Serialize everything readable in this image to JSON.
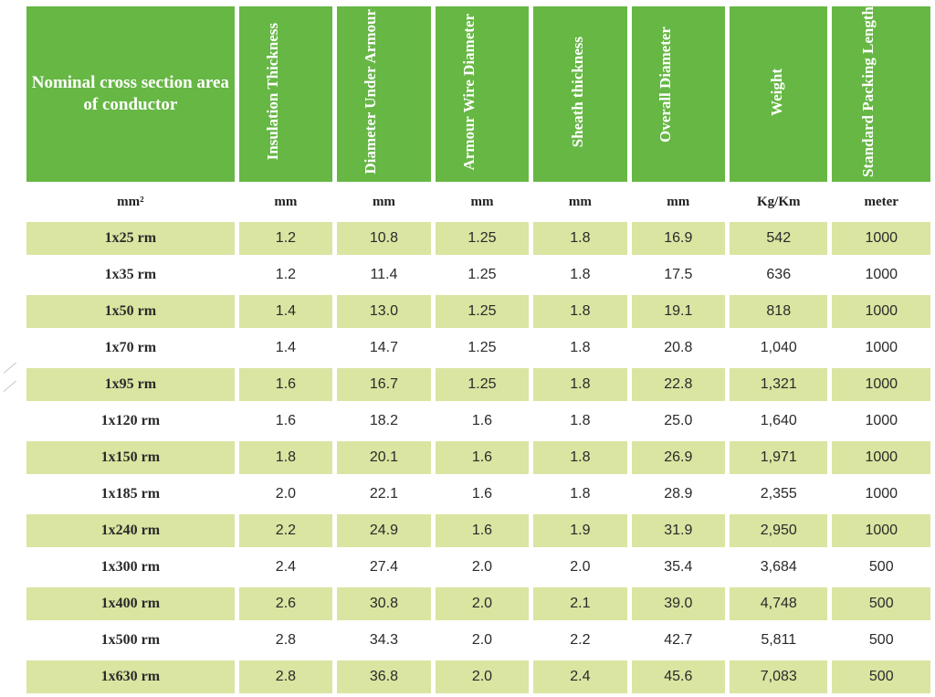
{
  "colors": {
    "header_bg": "#66b744",
    "shaded_row_bg": "#d9e5a1"
  },
  "headers": [
    "Nominal cross section area of conductor",
    "Insulation Thickness",
    "Diameter Under Armour",
    "Armour Wire Diameter",
    "Sheath thickness",
    "Overall Diameter",
    "Weight",
    "Standard Packing Length"
  ],
  "units": [
    "mm²",
    "mm",
    "mm",
    "mm",
    "mm",
    "mm",
    "Kg/Km",
    "meter"
  ],
  "rows": [
    [
      "1x25  rm",
      "1.2",
      "10.8",
      "1.25",
      "1.8",
      "16.9",
      "542",
      "1000"
    ],
    [
      "1x35  rm",
      "1.2",
      "11.4",
      "1.25",
      "1.8",
      "17.5",
      "636",
      "1000"
    ],
    [
      "1x50  rm",
      "1.4",
      "13.0",
      "1.25",
      "1.8",
      "19.1",
      "818",
      "1000"
    ],
    [
      "1x70  rm",
      "1.4",
      "14.7",
      "1.25",
      "1.8",
      "20.8",
      "1,040",
      "1000"
    ],
    [
      "1x95  rm",
      "1.6",
      "16.7",
      "1.25",
      "1.8",
      "22.8",
      "1,321",
      "1000"
    ],
    [
      "1x120  rm",
      "1.6",
      "18.2",
      "1.6",
      "1.8",
      "25.0",
      "1,640",
      "1000"
    ],
    [
      "1x150  rm",
      "1.8",
      "20.1",
      "1.6",
      "1.8",
      "26.9",
      "1,971",
      "1000"
    ],
    [
      "1x185  rm",
      "2.0",
      "22.1",
      "1.6",
      "1.8",
      "28.9",
      "2,355",
      "1000"
    ],
    [
      "1x240  rm",
      "2.2",
      "24.9",
      "1.6",
      "1.9",
      "31.9",
      "2,950",
      "1000"
    ],
    [
      "1x300   rm",
      "2.4",
      "27.4",
      "2.0",
      "2.0",
      "35.4",
      "3,684",
      "500"
    ],
    [
      "1x400   rm",
      "2.6",
      "30.8",
      "2.0",
      "2.1",
      "39.0",
      "4,748",
      "500"
    ],
    [
      "1x500   rm",
      "2.8",
      "34.3",
      "2.0",
      "2.2",
      "42.7",
      "5,811",
      "500"
    ],
    [
      "1x630   rm",
      "2.8",
      "36.8",
      "2.0",
      "2.4",
      "45.6",
      "7,083",
      "500"
    ]
  ]
}
